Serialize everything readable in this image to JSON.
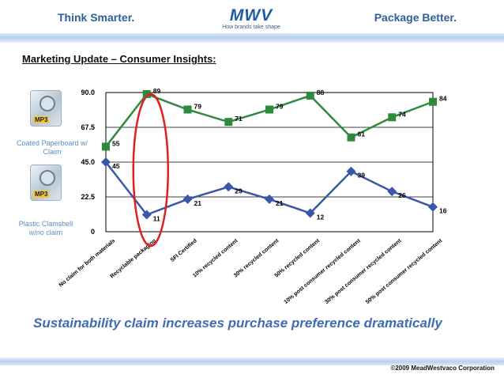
{
  "header": {
    "left_tagline": "Think Smarter.",
    "right_tagline": "Package Better.",
    "logo_text": "MWV",
    "logo_tagline": "How brands take shape"
  },
  "section_title": "Marketing Update – Consumer Insights:",
  "legend": {
    "green_label": "Coated Paperboard w/ Claim",
    "blue_label": "Plastic Clamshell w/no claim",
    "image_tag": "MP3"
  },
  "caption": "Sustainability claim increases purchase preference dramatically",
  "copyright": "©2009 MeadWestvaco Corporation",
  "colors": {
    "green": "#2e8b3e",
    "blue": "#3a57a8",
    "highlight": "#e02020",
    "accent_text": "#3d6db4"
  },
  "chart_data": {
    "type": "line",
    "categories": [
      "No claim for both materials",
      "Recyclable packaging",
      "SFI Certified",
      "10% recycled content",
      "30% recycled content",
      "50% recycled content",
      "10% post consumer recycled content",
      "30% post consumer recycled content",
      "50% post consumer recycled content"
    ],
    "series": [
      {
        "name": "Coated Paperboard w/ Claim",
        "color": "#2e8b3e",
        "marker": "square",
        "values": [
          55,
          89,
          79,
          71,
          79,
          88,
          61,
          74,
          84
        ],
        "labels": [
          "55",
          "89",
          "79",
          "71",
          "79",
          "88",
          "61",
          "74",
          "84"
        ]
      },
      {
        "name": "Plastic Clamshell w/no claim",
        "color": "#3a57a8",
        "marker": "diamond",
        "values": [
          45,
          11,
          21,
          29,
          21,
          12,
          39,
          26,
          16
        ],
        "labels": [
          "45",
          "11",
          "21",
          "29",
          "21",
          "12",
          "39",
          "26",
          "16"
        ]
      }
    ],
    "y_ticks": [
      "0",
      "22.5",
      "45.0",
      "67.5",
      "90.0"
    ],
    "y_tick_values": [
      0,
      22.5,
      45,
      67.5,
      90
    ],
    "ylim": [
      0,
      90
    ],
    "grid": true,
    "highlight_category": "Recyclable packaging",
    "title": "",
    "xlabel": "",
    "ylabel": ""
  }
}
